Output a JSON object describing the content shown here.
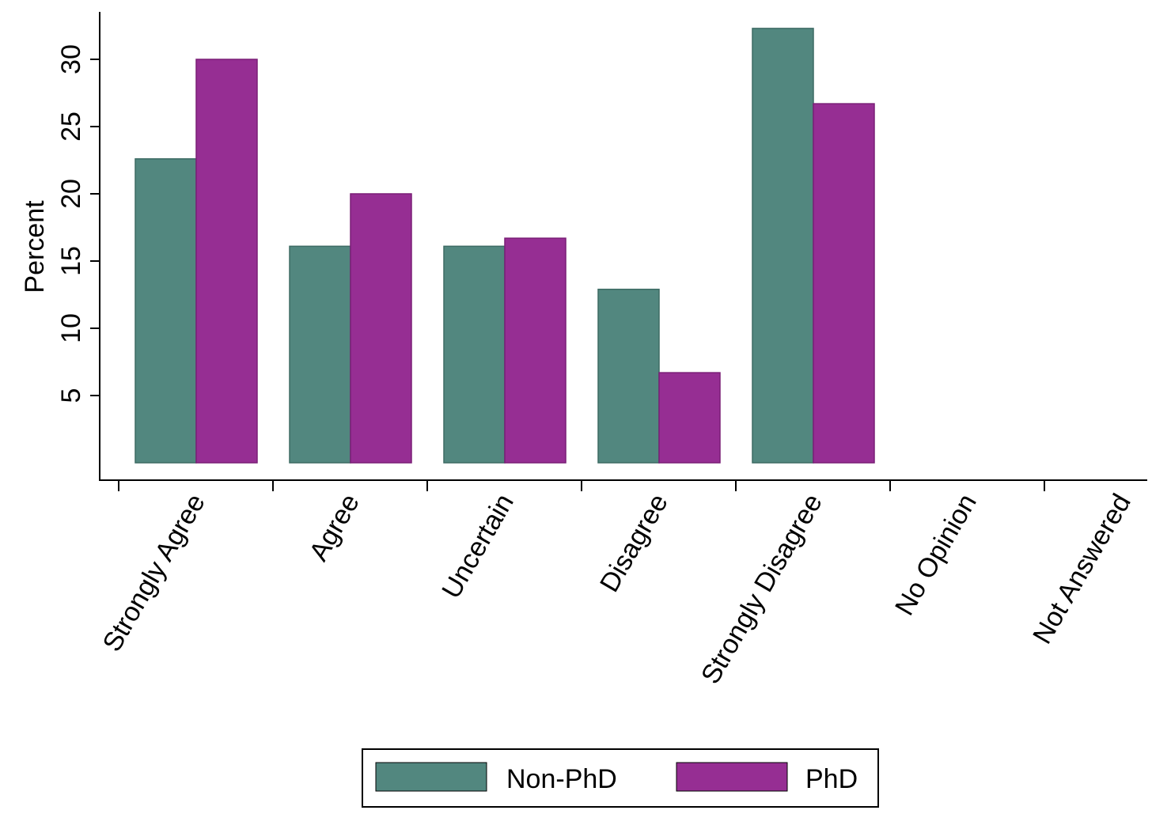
{
  "chart_data": {
    "type": "bar",
    "title": "",
    "xlabel": "",
    "ylabel": "Percent",
    "categories": [
      "Strongly Agree",
      "Agree",
      "Uncertain",
      "Disagree",
      "Strongly Disagree",
      "No Opinion",
      "Not Answered"
    ],
    "series": [
      {
        "name": "Non-PhD",
        "color": "#52877f",
        "values": [
          22.6,
          16.1,
          16.1,
          12.9,
          32.3,
          0,
          0
        ]
      },
      {
        "name": "PhD",
        "color": "#962e93",
        "values": [
          30.0,
          20.0,
          16.7,
          6.7,
          26.7,
          0,
          0
        ]
      }
    ],
    "yticks": [
      5,
      10,
      15,
      20,
      25,
      30
    ],
    "ylim": [
      0,
      32.3
    ],
    "grid": false,
    "legend_position": "bottom"
  }
}
